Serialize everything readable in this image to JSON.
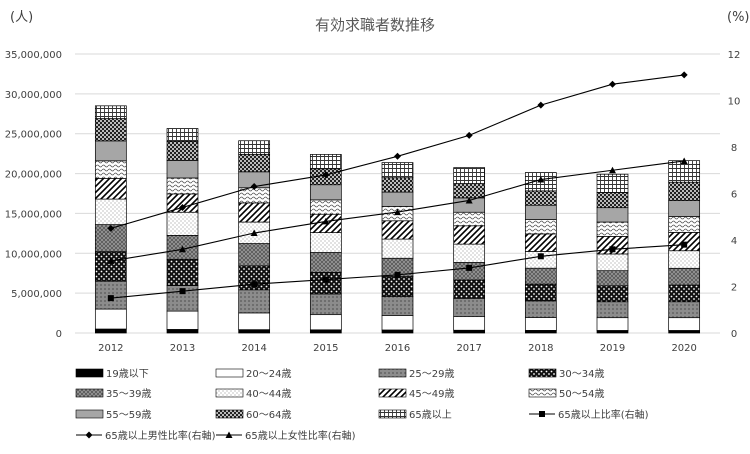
{
  "chart_data": {
    "type": "bar",
    "title": "有効求職者数推移",
    "y_unit_left": "(人)",
    "y_unit_right": "(%)",
    "ylim_left": [
      0,
      35000000
    ],
    "ylim_right": [
      0,
      12
    ],
    "left_ticks": [
      "0",
      "5,000,000",
      "10,000,000",
      "15,000,000",
      "20,000,000",
      "25,000,000",
      "30,000,000",
      "35,000,000"
    ],
    "right_ticks": [
      "0",
      "2",
      "4",
      "6",
      "8",
      "10",
      "12"
    ],
    "categories": [
      "2012",
      "2013",
      "2014",
      "2015",
      "2016",
      "2017",
      "2018",
      "2019",
      "2020"
    ],
    "grid": true,
    "legend_position": "bottom",
    "series": [
      {
        "name": "19歳以下",
        "values": [
          500000,
          450000,
          420000,
          400000,
          380000,
          350000,
          330000,
          320000,
          320000
        ],
        "fill": "black"
      },
      {
        "name": "20～24歳",
        "values": [
          2500000,
          2300000,
          2100000,
          1900000,
          1800000,
          1700000,
          1600000,
          1600000,
          1600000
        ],
        "fill": "white"
      },
      {
        "name": "25～29歳",
        "values": [
          3500000,
          3200000,
          2900000,
          2600000,
          2400000,
          2300000,
          2100000,
          2000000,
          2000000
        ],
        "fill": "gray"
      },
      {
        "name": "30～34歳",
        "values": [
          3700000,
          3300000,
          3000000,
          2700000,
          2500000,
          2300000,
          2100000,
          2000000,
          2100000
        ],
        "fill": "dots"
      },
      {
        "name": "35～39歳",
        "values": [
          3400000,
          3000000,
          2800000,
          2500000,
          2300000,
          2200000,
          2000000,
          1900000,
          2100000
        ],
        "fill": "cross"
      },
      {
        "name": "40～44歳",
        "values": [
          3200000,
          2900000,
          2700000,
          2500000,
          2400000,
          2300000,
          2100000,
          2100000,
          2200000
        ],
        "fill": "light"
      },
      {
        "name": "45～49歳",
        "values": [
          2600000,
          2300000,
          2400000,
          2300000,
          2300000,
          2300000,
          2200000,
          2200000,
          2300000
        ],
        "fill": "diag"
      },
      {
        "name": "50～54歳",
        "values": [
          2200000,
          2000000,
          1900000,
          1800000,
          1800000,
          1700000,
          1800000,
          1800000,
          2000000
        ],
        "fill": "wave"
      },
      {
        "name": "55～59歳",
        "values": [
          2500000,
          2200000,
          2000000,
          1900000,
          1800000,
          1800000,
          1800000,
          1800000,
          2000000
        ],
        "fill": "gray2"
      },
      {
        "name": "60～64歳",
        "values": [
          2800000,
          2400000,
          2200000,
          2000000,
          1800000,
          1800000,
          1800000,
          1900000,
          2300000
        ],
        "fill": "checker"
      },
      {
        "name": "65歳以上",
        "values": [
          1600000,
          1600000,
          1700000,
          1800000,
          1900000,
          2000000,
          2300000,
          2300000,
          2700000
        ],
        "fill": "grid"
      }
    ],
    "line_series": [
      {
        "name": "65歳以上比率(右軸)",
        "values": [
          1.5,
          1.8,
          2.1,
          2.3,
          2.5,
          2.8,
          3.3,
          3.6,
          3.8
        ],
        "marker": "square"
      },
      {
        "name": "65歳以上男性比率(右軸)",
        "values": [
          4.5,
          5.4,
          6.3,
          6.8,
          7.6,
          8.5,
          9.8,
          10.7,
          11.1
        ],
        "marker": "diamond"
      },
      {
        "name": "65歳以上女性比率(右軸)",
        "values": [
          3.1,
          3.6,
          4.3,
          4.8,
          5.2,
          5.7,
          6.6,
          7.0,
          7.4
        ],
        "marker": "triangle"
      }
    ]
  }
}
